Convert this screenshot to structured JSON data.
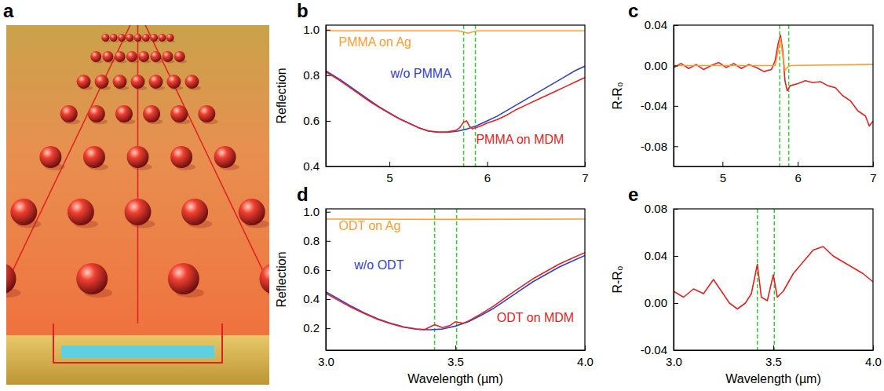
{
  "illustration": {
    "panel": "a"
  },
  "chart_data": [
    {
      "panel": "b",
      "type": "line",
      "y_label": "Reflection",
      "xlim": [
        4.35,
        7
      ],
      "xticks": [
        5,
        6,
        7
      ],
      "ylim": [
        0.4,
        1.02
      ],
      "yticks": [
        0.4,
        0.6,
        0.8,
        {
          "value": 1,
          "label": "1.0"
        }
      ],
      "vlines": [
        5.76,
        5.88
      ],
      "series": [
        {
          "name": "PMMA on Ag",
          "color": "#f7a035",
          "x": [
            4.35,
            5.0,
            5.7,
            5.76,
            5.8,
            5.85,
            5.9,
            7.0
          ],
          "values": [
            0.995,
            0.995,
            0.995,
            0.99,
            0.985,
            0.99,
            0.995,
            0.995
          ]
        },
        {
          "name": "w/o PMMA",
          "color": "#3340c0",
          "x": [
            4.35,
            4.5,
            4.6,
            4.7,
            4.8,
            4.9,
            5.0,
            5.1,
            5.2,
            5.3,
            5.4,
            5.5,
            5.6,
            5.7,
            5.8,
            5.9,
            6.0,
            6.1,
            6.2,
            6.3,
            6.4,
            6.5,
            6.6,
            6.7,
            6.8,
            6.9,
            7.0
          ],
          "values": [
            0.82,
            0.78,
            0.75,
            0.72,
            0.69,
            0.66,
            0.635,
            0.61,
            0.59,
            0.57,
            0.555,
            0.55,
            0.55,
            0.555,
            0.565,
            0.58,
            0.6,
            0.62,
            0.645,
            0.67,
            0.695,
            0.72,
            0.745,
            0.77,
            0.795,
            0.82,
            0.84
          ]
        },
        {
          "name": "PMMA on MDM",
          "color": "#e02424",
          "x": [
            4.35,
            4.5,
            4.6,
            4.7,
            4.8,
            4.9,
            5.0,
            5.1,
            5.2,
            5.3,
            5.4,
            5.5,
            5.6,
            5.68,
            5.72,
            5.76,
            5.79,
            5.82,
            5.85,
            5.88,
            5.92,
            6.0,
            6.1,
            6.2,
            6.3,
            6.4,
            6.5,
            6.6,
            6.7,
            6.8,
            6.9,
            7.0
          ],
          "values": [
            0.815,
            0.775,
            0.745,
            0.715,
            0.685,
            0.658,
            0.633,
            0.609,
            0.589,
            0.57,
            0.556,
            0.551,
            0.552,
            0.558,
            0.57,
            0.595,
            0.6,
            0.575,
            0.565,
            0.57,
            0.575,
            0.59,
            0.605,
            0.625,
            0.65,
            0.67,
            0.69,
            0.71,
            0.73,
            0.75,
            0.77,
            0.79
          ]
        }
      ]
    },
    {
      "panel": "c",
      "type": "line",
      "y_label": "R-R₀",
      "xlim": [
        4.35,
        7
      ],
      "xticks": [
        5,
        6,
        7
      ],
      "ylim": [
        -0.1,
        0.04
      ],
      "yticks": [
        -0.08,
        -0.04,
        {
          "value": 0,
          "label": "0.00"
        },
        0.04
      ],
      "vlines": [
        5.76,
        5.88
      ],
      "series": [
        {
          "color": "#e02424",
          "x": [
            4.35,
            4.45,
            4.55,
            4.65,
            4.75,
            4.85,
            4.95,
            5.05,
            5.15,
            5.25,
            5.35,
            5.45,
            5.55,
            5.65,
            5.7,
            5.74,
            5.77,
            5.8,
            5.83,
            5.86,
            5.9,
            6.0,
            6.1,
            6.2,
            6.3,
            6.4,
            6.5,
            6.6,
            6.7,
            6.8,
            6.9,
            6.95,
            7.0
          ],
          "values": [
            -0.002,
            0.002,
            -0.003,
            0.001,
            -0.004,
            0.0,
            0.003,
            -0.002,
            0.002,
            -0.003,
            0.001,
            -0.002,
            -0.006,
            -0.004,
            0.005,
            0.022,
            0.03,
            0.015,
            -0.015,
            -0.025,
            -0.02,
            -0.018,
            -0.015,
            -0.017,
            -0.016,
            -0.02,
            -0.022,
            -0.03,
            -0.035,
            -0.045,
            -0.05,
            -0.06,
            -0.055
          ]
        },
        {
          "color": "#f7a035",
          "x": [
            4.35,
            5.7,
            5.74,
            5.77,
            5.8,
            5.83,
            5.86,
            5.9,
            7.0
          ],
          "values": [
            0.0,
            0.0,
            0.015,
            0.027,
            0.01,
            -0.005,
            -0.002,
            0.0,
            0.001
          ]
        }
      ]
    },
    {
      "panel": "d",
      "type": "line",
      "x_label": "Wavelength (µm)",
      "y_label": "Reflection",
      "xlim": [
        3,
        4
      ],
      "xticks": [
        {
          "value": 3,
          "label": "3.0"
        },
        3.5,
        {
          "value": 4,
          "label": "4.0"
        }
      ],
      "ylim": [
        0.05,
        1.02
      ],
      "yticks": [
        0.2,
        0.4,
        0.6,
        0.8,
        {
          "value": 1,
          "label": "1.0"
        }
      ],
      "vlines": [
        3.42,
        3.505
      ],
      "series": [
        {
          "name": "ODT on Ag",
          "color": "#f7a035",
          "x": [
            3.0,
            3.5,
            4.0
          ],
          "values": [
            0.95,
            0.948,
            0.95
          ]
        },
        {
          "name": "w/o ODT",
          "color": "#3340c0",
          "x": [
            3.0,
            3.05,
            3.1,
            3.15,
            3.2,
            3.25,
            3.3,
            3.35,
            3.4,
            3.45,
            3.5,
            3.55,
            3.6,
            3.65,
            3.7,
            3.75,
            3.8,
            3.85,
            3.9,
            3.95,
            4.0
          ],
          "values": [
            0.45,
            0.4,
            0.35,
            0.305,
            0.265,
            0.235,
            0.21,
            0.195,
            0.19,
            0.195,
            0.215,
            0.245,
            0.29,
            0.34,
            0.4,
            0.46,
            0.52,
            0.57,
            0.62,
            0.66,
            0.7
          ]
        },
        {
          "name": "ODT on MDM",
          "color": "#e02424",
          "x": [
            3.0,
            3.05,
            3.1,
            3.15,
            3.2,
            3.25,
            3.3,
            3.35,
            3.38,
            3.42,
            3.45,
            3.48,
            3.5,
            3.53,
            3.55,
            3.6,
            3.65,
            3.7,
            3.75,
            3.8,
            3.85,
            3.9,
            3.95,
            4.0
          ],
          "values": [
            0.44,
            0.39,
            0.342,
            0.3,
            0.262,
            0.232,
            0.208,
            0.194,
            0.19,
            0.225,
            0.205,
            0.22,
            0.245,
            0.235,
            0.25,
            0.3,
            0.355,
            0.42,
            0.48,
            0.54,
            0.59,
            0.64,
            0.68,
            0.72
          ]
        }
      ]
    },
    {
      "panel": "e",
      "type": "line",
      "x_label": "Wavelength (µm)",
      "y_label": "R-R₀",
      "xlim": [
        3,
        4
      ],
      "xticks": [
        {
          "value": 3,
          "label": "3.0"
        },
        3.5,
        {
          "value": 4,
          "label": "4.0"
        }
      ],
      "ylim": [
        -0.04,
        0.08
      ],
      "yticks": [
        -0.04,
        {
          "value": 0,
          "label": "0.00"
        },
        0.04,
        0.08
      ],
      "vlines": [
        3.42,
        3.505
      ],
      "series": [
        {
          "color": "#e02424",
          "x": [
            3.0,
            3.05,
            3.1,
            3.15,
            3.2,
            3.24,
            3.28,
            3.32,
            3.36,
            3.39,
            3.42,
            3.44,
            3.47,
            3.5,
            3.52,
            3.55,
            3.6,
            3.65,
            3.7,
            3.75,
            3.8,
            3.85,
            3.9,
            3.95,
            4.0
          ],
          "values": [
            0.01,
            0.005,
            0.012,
            0.008,
            0.02,
            0.01,
            0.0,
            -0.005,
            0.0,
            0.008,
            0.033,
            0.005,
            0.002,
            0.024,
            0.005,
            0.01,
            0.025,
            0.035,
            0.045,
            0.048,
            0.04,
            0.035,
            0.03,
            0.025,
            0.018
          ]
        }
      ]
    }
  ]
}
